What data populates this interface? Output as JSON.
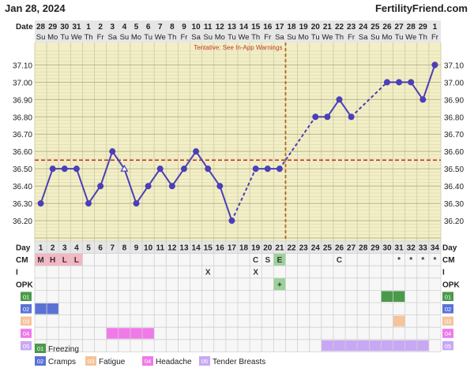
{
  "header": {
    "date": "Jan 28, 2024",
    "site": "FertilityFriend.com"
  },
  "chart_data": {
    "type": "line",
    "title": "",
    "xlabel": "Date",
    "ylabel": "",
    "ylim": [
      36.1,
      37.17
    ],
    "yticks": [
      "37.10",
      "37.00",
      "36.90",
      "36.80",
      "36.70",
      "36.60",
      "36.50",
      "36.40",
      "36.30",
      "36.20"
    ],
    "grid": true,
    "date_row_label": "Date",
    "dates": [
      "28",
      "29",
      "30",
      "31",
      "1",
      "2",
      "3",
      "4",
      "5",
      "6",
      "7",
      "8",
      "9",
      "10",
      "11",
      "12",
      "13",
      "14",
      "15",
      "16",
      "17",
      "18",
      "19",
      "20",
      "21",
      "22",
      "23",
      "24",
      "25",
      "26",
      "27",
      "28",
      "29",
      "1"
    ],
    "weekdays": [
      "Su",
      "Mo",
      "Tu",
      "We",
      "Th",
      "Fr",
      "Sa",
      "Su",
      "Mo",
      "Tu",
      "We",
      "Th",
      "Fr",
      "Sa",
      "Su",
      "Mo",
      "Tu",
      "We",
      "Th",
      "Fr",
      "Sa",
      "Su",
      "Mo",
      "Tu",
      "We",
      "Th",
      "Fr",
      "Sa",
      "Su",
      "Mo",
      "Tu",
      "We",
      "Th",
      "Fr"
    ],
    "temps": [
      36.3,
      36.5,
      36.5,
      36.5,
      36.3,
      36.4,
      36.6,
      36.5,
      36.3,
      36.4,
      36.5,
      36.4,
      36.5,
      36.6,
      36.5,
      36.4,
      36.2,
      null,
      36.5,
      36.5,
      36.5,
      null,
      null,
      36.8,
      36.8,
      36.9,
      36.8,
      null,
      null,
      37.0,
      37.0,
      37.0,
      36.9,
      37.1
    ],
    "open_point_day": 8,
    "coverline": 36.55,
    "ovulation_day": 21,
    "tentative_note": "Tentative: See In-App Warnings",
    "day_row_label": "Day",
    "days": [
      "1",
      "2",
      "3",
      "4",
      "5",
      "6",
      "7",
      "8",
      "9",
      "10",
      "11",
      "12",
      "13",
      "14",
      "15",
      "16",
      "17",
      "18",
      "19",
      "20",
      "21",
      "22",
      "23",
      "24",
      "25",
      "26",
      "27",
      "28",
      "29",
      "30",
      "31",
      "32",
      "33",
      "34"
    ],
    "rows": [
      {
        "label": "CM",
        "cells": {
          "1": "M",
          "2": "H",
          "3": "L",
          "4": "L",
          "19": "C",
          "20": "S",
          "21": "E",
          "26": "C",
          "31": "*",
          "32": "*",
          "33": "*",
          "34": "*"
        }
      },
      {
        "label": "I",
        "cells": {
          "15": "X",
          "19": "X"
        }
      },
      {
        "label": "OPK",
        "cells": {
          "21": "+"
        }
      },
      {
        "label": "01",
        "color": "#4a9a4a",
        "ranges": [
          [
            30,
            31
          ]
        ]
      },
      {
        "label": "02",
        "color": "#5a72d6",
        "ranges": [
          [
            1,
            2
          ]
        ]
      },
      {
        "label": "03",
        "color": "#f5c49a",
        "ranges": [
          [
            31,
            31
          ]
        ]
      },
      {
        "label": "04",
        "color": "#f07ae8",
        "ranges": [
          [
            7,
            10
          ]
        ]
      },
      {
        "label": "05",
        "color": "#c8a8f5",
        "ranges": [
          [
            25,
            33
          ]
        ]
      }
    ],
    "menses_days": [
      1,
      2,
      3,
      4
    ],
    "cm_highlight_day": 21,
    "legend": [
      {
        "code": "01",
        "label": "Freezing",
        "color": "#4a9a4a"
      },
      {
        "code": "02",
        "label": "Cramps",
        "color": "#5a72d6"
      },
      {
        "code": "03",
        "label": "Fatigue",
        "color": "#f5c49a"
      },
      {
        "code": "04",
        "label": "Headache",
        "color": "#f07ae8"
      },
      {
        "code": "05",
        "label": "Tender Breasts",
        "color": "#c8a8f5"
      }
    ],
    "colors": {
      "chart_bg": "#f2efc6",
      "header_bg": "#e6e6e6",
      "line": "#4a3fb8",
      "coverline": "#c0392b",
      "ovulation": "#b5651d",
      "menses": "#f4b6c2",
      "cm_fertile": "#9ad29a"
    }
  }
}
